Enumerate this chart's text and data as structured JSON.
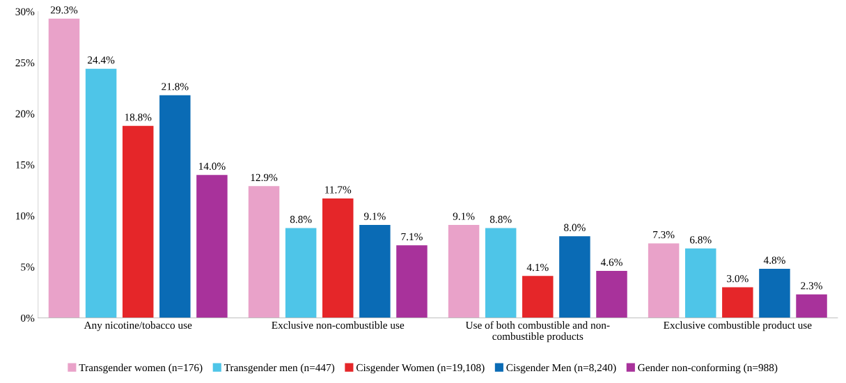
{
  "chart_data": {
    "type": "bar",
    "categories": [
      "Any nicotine/tobacco use",
      "Exclusive non-combustible use",
      "Use of both combustible and non-\ncombustible products",
      "Exclusive combustible product use"
    ],
    "series": [
      {
        "name": "Transgender women (n=176)",
        "color": "#e9a2c9",
        "values": [
          29.3,
          12.9,
          9.1,
          7.3
        ],
        "value_labels": [
          "29.3%",
          "12.9%",
          "9.1%",
          "7.3%"
        ]
      },
      {
        "name": "Transgender men (n=447)",
        "color": "#4ec5e8",
        "values": [
          24.4,
          8.8,
          8.8,
          6.8
        ],
        "value_labels": [
          "24.4%",
          "8.8%",
          "8.8%",
          "6.8%"
        ]
      },
      {
        "name": "Cisgender Women (n=19,108)",
        "color": "#e52629",
        "values": [
          18.8,
          11.7,
          4.1,
          3.0
        ],
        "value_labels": [
          "18.8%",
          "11.7%",
          "4.1%",
          "3.0%"
        ]
      },
      {
        "name": "Cisgender Men (n=8,240)",
        "color": "#0a6bb5",
        "values": [
          21.8,
          9.1,
          8.0,
          4.8
        ],
        "value_labels": [
          "21.8%",
          "9.1%",
          "8.0%",
          "4.8%"
        ]
      },
      {
        "name": "Gender non-conforming (n=988)",
        "color": "#a8329b",
        "values": [
          14.0,
          7.1,
          4.6,
          2.3
        ],
        "value_labels": [
          "14.0%",
          "7.1%",
          "4.6%",
          "2.3%"
        ]
      }
    ],
    "ylim": [
      0,
      30
    ],
    "yticks": [
      {
        "value": 0,
        "label": "0%"
      },
      {
        "value": 5,
        "label": "5%"
      },
      {
        "value": 10,
        "label": "10%"
      },
      {
        "value": 15,
        "label": "15%"
      },
      {
        "value": 20,
        "label": "20%"
      },
      {
        "value": 25,
        "label": "25%"
      },
      {
        "value": 30,
        "label": "30%"
      }
    ],
    "legend": "bottom"
  }
}
